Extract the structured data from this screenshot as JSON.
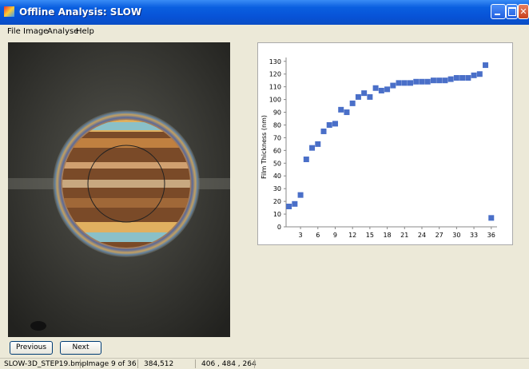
{
  "window": {
    "title": "Offline Analysis: SLOW"
  },
  "menu": [
    "File",
    "Image",
    "Analyse",
    "Help"
  ],
  "buttons": [
    "Previous",
    "Next"
  ],
  "status_bar": [
    "SLOW-3D_STEP19.bmp",
    "Image 9 of 36",
    "384,512",
    "406 , 484 , 264"
  ],
  "chart_data": {
    "type": "scatter",
    "y_label": "Film Thickness (nm)",
    "x": [
      1,
      2,
      3,
      4,
      5,
      6,
      7,
      8,
      9,
      10,
      11,
      12,
      13,
      14,
      15,
      16,
      17,
      18,
      19,
      20,
      21,
      22,
      23,
      24,
      25,
      26,
      27,
      28,
      29,
      30,
      31,
      32,
      33,
      34,
      35,
      36
    ],
    "values": [
      16,
      18,
      25,
      53,
      62,
      65,
      75,
      80,
      81,
      92,
      90,
      97,
      102,
      105,
      102,
      109,
      107,
      108,
      111,
      113,
      113,
      113,
      114,
      114,
      114,
      115,
      115,
      115,
      116,
      117,
      117,
      117,
      119,
      120,
      127,
      7
    ],
    "color": "#4a6fc8",
    "xlim": [
      0.5,
      37
    ],
    "xticks": [
      3,
      6,
      9,
      12,
      15,
      18,
      21,
      24,
      27,
      30,
      33,
      36
    ],
    "ylim": [
      0,
      133
    ],
    "yticks": [
      0,
      10,
      20,
      30,
      40,
      50,
      60,
      70,
      80,
      90,
      100,
      110,
      120,
      130
    ]
  }
}
